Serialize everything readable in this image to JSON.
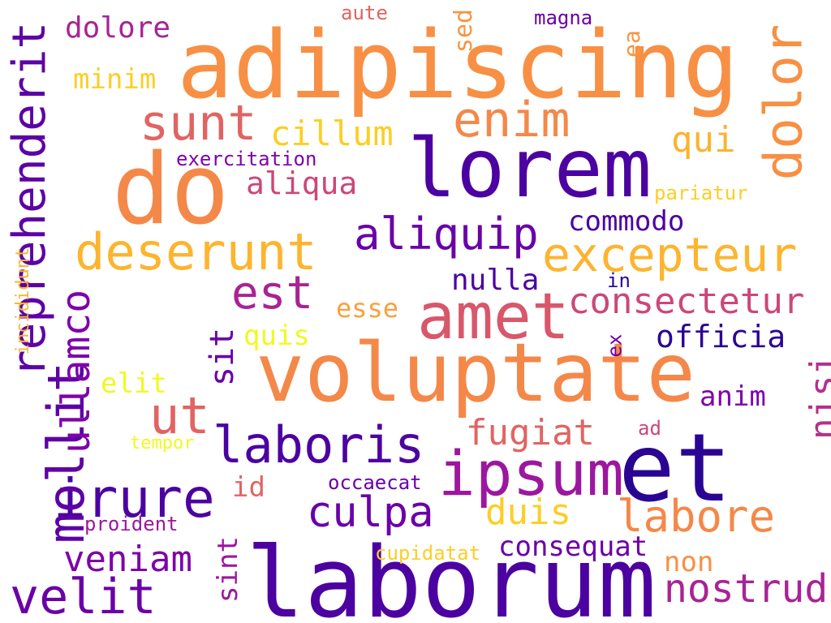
{
  "words": {
    "adipiscing": {
      "text": "adipiscing",
      "color": "#F79044"
    },
    "lorem": {
      "text": "lorem",
      "color": "#4C02A1"
    },
    "do": {
      "text": "do",
      "color": "#F48849"
    },
    "voluptate": {
      "text": "voluptate",
      "color": "#F48849"
    },
    "laborum": {
      "text": "laborum",
      "color": "#4C02A1"
    },
    "et": {
      "text": "et",
      "color": "#2A0593"
    },
    "ipsum": {
      "text": "ipsum",
      "color": "#9C179E"
    },
    "amet": {
      "text": "amet",
      "color": "#D8576B"
    },
    "laboris": {
      "text": "laboris",
      "color": "#4C02A1"
    },
    "excepteur": {
      "text": "excepteur",
      "color": "#FDB42F"
    },
    "deserunt": {
      "text": "deserunt",
      "color": "#FDB42F"
    },
    "irure": {
      "text": "irure",
      "color": "#4C02A1"
    },
    "reprehenderit": {
      "text": "reprehenderit",
      "color": "#5D01A6"
    },
    "mollit": {
      "text": "mollit",
      "color": "#5D01A6"
    },
    "ullamco": {
      "text": "ullamco",
      "color": "#7E03A8"
    },
    "dolor": {
      "text": "dolor",
      "color": "#F79044"
    },
    "sunt": {
      "text": "sunt",
      "color": "#E16462"
    },
    "enim": {
      "text": "enim",
      "color": "#F48849"
    },
    "ut": {
      "text": "ut",
      "color": "#E16462"
    },
    "est": {
      "text": "est",
      "color": "#A92395"
    },
    "aliquip": {
      "text": "aliquip",
      "color": "#6A00A8"
    },
    "culpa": {
      "text": "culpa",
      "color": "#6A00A8"
    },
    "labore": {
      "text": "labore",
      "color": "#F48849"
    },
    "nostrud": {
      "text": "nostrud",
      "color": "#A92395"
    },
    "velit": {
      "text": "velit",
      "color": "#6A00A8"
    },
    "veniam": {
      "text": "veniam",
      "color": "#7E03A8"
    },
    "nisi": {
      "text": "nisi",
      "color": "#B52F8C"
    },
    "consectetur": {
      "text": "consectetur",
      "color": "#CC4778"
    },
    "cillum": {
      "text": "cillum",
      "color": "#FCCE25"
    },
    "qui": {
      "text": "qui",
      "color": "#FBB32F"
    },
    "fugiat": {
      "text": "fugiat",
      "color": "#E16462"
    },
    "duis": {
      "text": "duis",
      "color": "#FCCE25"
    },
    "officia": {
      "text": "officia",
      "color": "#2A0593"
    },
    "sit": {
      "text": "sit",
      "color": "#6A00A8"
    },
    "aliqua": {
      "text": "aliqua",
      "color": "#CC4778"
    },
    "commodo": {
      "text": "commodo",
      "color": "#4C02A1"
    },
    "nulla": {
      "text": "nulla",
      "color": "#4C02A1"
    },
    "esse": {
      "text": "esse",
      "color": "#FB9F3A"
    },
    "quis": {
      "text": "quis",
      "color": "#F0F921"
    },
    "elit": {
      "text": "elit",
      "color": "#F0F921"
    },
    "anim": {
      "text": "anim",
      "color": "#7E03A8"
    },
    "consequat": {
      "text": "consequat",
      "color": "#6A00A8"
    },
    "non": {
      "text": "non",
      "color": "#F79044"
    },
    "sint": {
      "text": "sint",
      "color": "#9C179E"
    },
    "dolore": {
      "text": "dolore",
      "color": "#A92395"
    },
    "minim": {
      "text": "minim",
      "color": "#FCCE25"
    },
    "exercitation": {
      "text": "exercitation",
      "color": "#7E03A8"
    },
    "sed": {
      "text": "sed",
      "color": "#F89540"
    },
    "ea": {
      "text": "ea",
      "color": "#F89540"
    },
    "aute": {
      "text": "aute",
      "color": "#E16462"
    },
    "magna": {
      "text": "magna",
      "color": "#6A00A8"
    },
    "pariatur": {
      "text": "pariatur",
      "color": "#FCCE25"
    },
    "in": {
      "text": "in",
      "color": "#2A0593"
    },
    "ex": {
      "text": "ex",
      "color": "#6A00A8"
    },
    "ad": {
      "text": "ad",
      "color": "#CC4778"
    },
    "id": {
      "text": "id",
      "color": "#E16462"
    },
    "occaecat": {
      "text": "occaecat",
      "color": "#6A00A8"
    },
    "proident": {
      "text": "proident",
      "color": "#9C179E"
    },
    "tempor": {
      "text": "tempor",
      "color": "#F0F921"
    },
    "cupidatat": {
      "text": "cupidatat",
      "color": "#FCCE25"
    },
    "incididunt": {
      "text": "incididunt",
      "color": "#FDB42F"
    }
  }
}
